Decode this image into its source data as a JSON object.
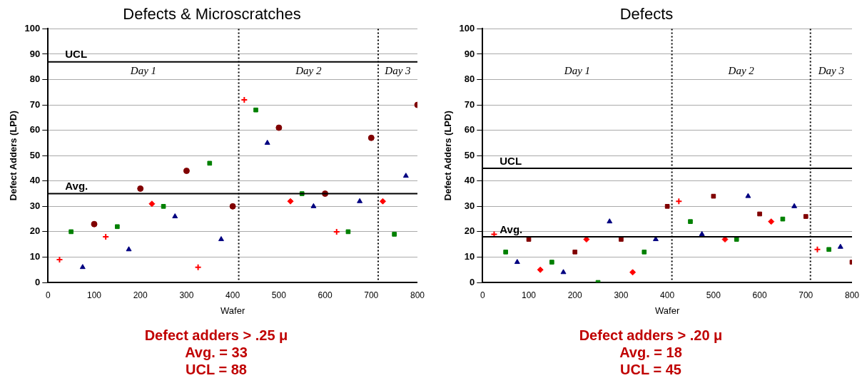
{
  "chart_data": [
    {
      "type": "scatter",
      "title": "Defects & Microscratches",
      "xlabel": "Wafer",
      "ylabel": "Defect Adders (LPD)",
      "xlim": [
        0,
        800
      ],
      "xticks": [
        0,
        100,
        200,
        300,
        400,
        500,
        600,
        700,
        800
      ],
      "ylim": [
        0,
        100
      ],
      "yticks": [
        0,
        10,
        20,
        30,
        40,
        50,
        60,
        70,
        80,
        90,
        100
      ],
      "grid": "y",
      "legend": false,
      "series": [
        {
          "color": "#ff0000",
          "marker": "cross",
          "x": [
            25,
            125,
            325,
            425,
            625
          ],
          "values": [
            9,
            18,
            6,
            72,
            20
          ]
        },
        {
          "color": "#ff0000",
          "marker": "diamond",
          "x": [
            225,
            525,
            725
          ],
          "values": [
            31,
            32,
            32
          ]
        },
        {
          "color": "#008000",
          "marker": "square",
          "x": [
            50,
            150,
            250,
            350,
            450,
            550,
            650,
            750
          ],
          "values": [
            20,
            22,
            30,
            47,
            68,
            35,
            20,
            19
          ]
        },
        {
          "color": "#000080",
          "marker": "triangle",
          "x": [
            75,
            175,
            275,
            375,
            475,
            575,
            675,
            775
          ],
          "values": [
            6,
            13,
            26,
            17,
            55,
            30,
            32,
            42
          ]
        },
        {
          "color": "#800000",
          "marker": "circle",
          "x": [
            100,
            200,
            300,
            400,
            500,
            600,
            700,
            800
          ],
          "values": [
            23,
            37,
            44,
            30,
            61,
            35,
            57,
            70
          ]
        }
      ],
      "ref_lines": [
        {
          "axis": "y",
          "value": 87,
          "label": "UCL"
        },
        {
          "axis": "y",
          "value": 35,
          "label": "Avg."
        },
        {
          "axis": "x",
          "value": 413,
          "line_style": "dotted"
        },
        {
          "axis": "x",
          "value": 715,
          "line_style": "dotted"
        }
      ],
      "annotations": [
        "Day 1",
        "Day 2",
        "Day 3",
        "Defect adders > .25 μ",
        "Avg. = 33",
        "UCL = 88"
      ]
    },
    {
      "type": "scatter",
      "title": "Defects",
      "xlabel": "Wafer",
      "ylabel": "Defect Adders (LPD)",
      "xlim": [
        0,
        800
      ],
      "xticks": [
        0,
        100,
        200,
        300,
        400,
        500,
        600,
        700,
        800
      ],
      "ylim": [
        0,
        100
      ],
      "yticks": [
        0,
        10,
        20,
        30,
        40,
        50,
        60,
        70,
        80,
        90,
        100
      ],
      "grid": "y",
      "legend": false,
      "series": [
        {
          "color": "#ff0000",
          "marker": "cross",
          "x": [
            25,
            425,
            725
          ],
          "values": [
            19,
            32,
            13
          ]
        },
        {
          "color": "#ff0000",
          "marker": "diamond",
          "x": [
            125,
            225,
            325,
            525,
            625
          ],
          "values": [
            5,
            17,
            4,
            17,
            24
          ]
        },
        {
          "color": "#008000",
          "marker": "square",
          "x": [
            50,
            150,
            250,
            350,
            450,
            550,
            650,
            750
          ],
          "values": [
            12,
            8,
            0,
            12,
            24,
            17,
            25,
            13
          ]
        },
        {
          "color": "#000080",
          "marker": "triangle",
          "x": [
            75,
            175,
            275,
            375,
            475,
            575,
            675,
            775
          ],
          "values": [
            8,
            4,
            24,
            17,
            19,
            34,
            30,
            14
          ]
        },
        {
          "color": "#800000",
          "marker": "square",
          "x": [
            100,
            200,
            300,
            400,
            500,
            600,
            700,
            800
          ],
          "values": [
            17,
            12,
            17,
            30,
            34,
            27,
            26,
            8
          ]
        }
      ],
      "ref_lines": [
        {
          "axis": "y",
          "value": 45,
          "label": "UCL"
        },
        {
          "axis": "y",
          "value": 18,
          "label": "Avg."
        },
        {
          "axis": "x",
          "value": 410,
          "line_style": "dotted"
        },
        {
          "axis": "x",
          "value": 710,
          "line_style": "dotted"
        }
      ],
      "annotations": [
        "Day 1",
        "Day 2",
        "Day 3",
        "Defect adders > .20 μ",
        "Avg. = 18",
        "UCL = 45"
      ]
    }
  ]
}
